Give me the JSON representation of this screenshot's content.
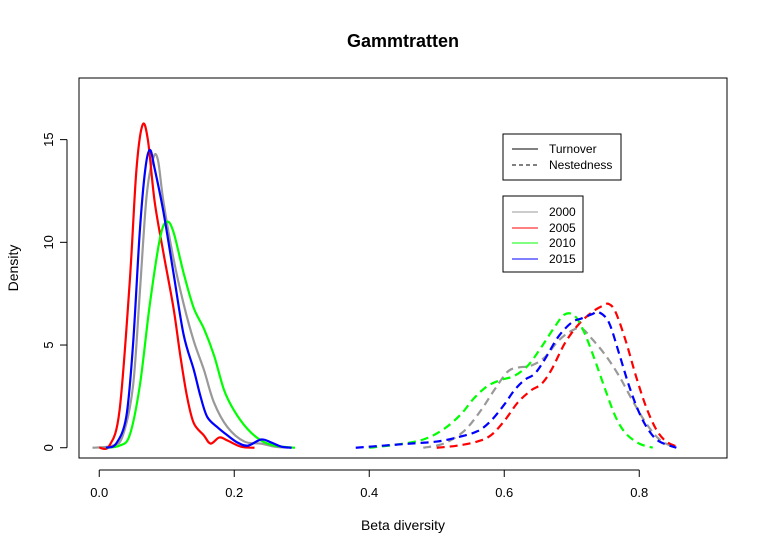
{
  "chart_data": {
    "type": "line",
    "title": "Gammtratten",
    "xlabel": "Beta diversity",
    "ylabel": "Density",
    "xlim": [
      -0.03,
      0.93
    ],
    "ylim": [
      -0.5,
      18
    ],
    "xticks": [
      0.0,
      0.2,
      0.4,
      0.6,
      0.8
    ],
    "xtick_labels": [
      "0.0",
      "0.2",
      "0.4",
      "0.6",
      "0.8"
    ],
    "yticks": [
      0,
      5,
      10,
      15
    ],
    "ytick_labels": [
      "0",
      "5",
      "10",
      "15"
    ],
    "grid": false,
    "legend_linetype": {
      "placement": "top-right",
      "entries": [
        {
          "label": "Turnover",
          "dash": "solid"
        },
        {
          "label": "Nestedness",
          "dash": "dashed"
        }
      ]
    },
    "legend_years": {
      "placement": "right",
      "entries": [
        {
          "label": "2000",
          "color": "#999999"
        },
        {
          "label": "2005",
          "color": "#ff0000"
        },
        {
          "label": "2010",
          "color": "#00ff00"
        },
        {
          "label": "2015",
          "color": "#0000ff"
        }
      ]
    },
    "series": [
      {
        "year": "2000",
        "component": "Turnover",
        "color": "#999999",
        "dash": "solid",
        "points": [
          [
            -0.01,
            0
          ],
          [
            0.02,
            0.1
          ],
          [
            0.035,
            0.6
          ],
          [
            0.05,
            3.0
          ],
          [
            0.06,
            7.5
          ],
          [
            0.07,
            12.2
          ],
          [
            0.08,
            14.1
          ],
          [
            0.087,
            14.0
          ],
          [
            0.095,
            12.0
          ],
          [
            0.11,
            9.2
          ],
          [
            0.125,
            7.0
          ],
          [
            0.14,
            5.2
          ],
          [
            0.155,
            3.8
          ],
          [
            0.17,
            2.2
          ],
          [
            0.19,
            1.0
          ],
          [
            0.215,
            0.3
          ],
          [
            0.24,
            0.2
          ],
          [
            0.26,
            0.05
          ],
          [
            0.28,
            0
          ]
        ]
      },
      {
        "year": "2005",
        "component": "Turnover",
        "color": "#ff0000",
        "dash": "solid",
        "points": [
          [
            0.0,
            0
          ],
          [
            0.015,
            0.1
          ],
          [
            0.03,
            1.8
          ],
          [
            0.045,
            8.0
          ],
          [
            0.055,
            13.5
          ],
          [
            0.064,
            15.7
          ],
          [
            0.072,
            15.0
          ],
          [
            0.082,
            12.0
          ],
          [
            0.095,
            9.5
          ],
          [
            0.11,
            6.8
          ],
          [
            0.12,
            4.5
          ],
          [
            0.13,
            2.5
          ],
          [
            0.14,
            1.2
          ],
          [
            0.155,
            0.6
          ],
          [
            0.165,
            0.2
          ],
          [
            0.178,
            0.5
          ],
          [
            0.19,
            0.35
          ],
          [
            0.21,
            0.05
          ],
          [
            0.23,
            0
          ]
        ]
      },
      {
        "year": "2010",
        "component": "Turnover",
        "color": "#00ff00",
        "dash": "solid",
        "points": [
          [
            0.01,
            0
          ],
          [
            0.03,
            0.1
          ],
          [
            0.045,
            0.6
          ],
          [
            0.06,
            3.0
          ],
          [
            0.075,
            7.0
          ],
          [
            0.09,
            10.2
          ],
          [
            0.1,
            11.0
          ],
          [
            0.11,
            10.5
          ],
          [
            0.125,
            8.5
          ],
          [
            0.14,
            6.8
          ],
          [
            0.155,
            5.8
          ],
          [
            0.17,
            4.5
          ],
          [
            0.185,
            2.8
          ],
          [
            0.2,
            1.8
          ],
          [
            0.22,
            0.9
          ],
          [
            0.24,
            0.35
          ],
          [
            0.26,
            0.1
          ],
          [
            0.29,
            0
          ]
        ]
      },
      {
        "year": "2015",
        "component": "Turnover",
        "color": "#0000ff",
        "dash": "solid",
        "points": [
          [
            0.01,
            0
          ],
          [
            0.025,
            0.2
          ],
          [
            0.04,
            1.5
          ],
          [
            0.05,
            5.0
          ],
          [
            0.06,
            10.5
          ],
          [
            0.068,
            13.5
          ],
          [
            0.075,
            14.5
          ],
          [
            0.082,
            13.6
          ],
          [
            0.095,
            11.5
          ],
          [
            0.11,
            8.5
          ],
          [
            0.125,
            5.5
          ],
          [
            0.14,
            3.8
          ],
          [
            0.15,
            2.5
          ],
          [
            0.16,
            1.5
          ],
          [
            0.175,
            1.0
          ],
          [
            0.19,
            0.6
          ],
          [
            0.205,
            0.25
          ],
          [
            0.22,
            0.1
          ],
          [
            0.24,
            0.4
          ],
          [
            0.255,
            0.25
          ],
          [
            0.27,
            0.05
          ],
          [
            0.285,
            0
          ]
        ]
      },
      {
        "year": "2000",
        "component": "Nestedness",
        "color": "#999999",
        "dash": "dashed",
        "points": [
          [
            0.48,
            0
          ],
          [
            0.51,
            0.2
          ],
          [
            0.54,
            0.8
          ],
          [
            0.565,
            1.8
          ],
          [
            0.585,
            2.8
          ],
          [
            0.605,
            3.7
          ],
          [
            0.62,
            3.9
          ],
          [
            0.64,
            4.0
          ],
          [
            0.66,
            4.4
          ],
          [
            0.68,
            5.2
          ],
          [
            0.7,
            5.7
          ],
          [
            0.715,
            5.8
          ],
          [
            0.73,
            5.3
          ],
          [
            0.75,
            4.5
          ],
          [
            0.77,
            3.5
          ],
          [
            0.79,
            2.3
          ],
          [
            0.81,
            1.2
          ],
          [
            0.83,
            0.4
          ],
          [
            0.85,
            0.05
          ]
        ]
      },
      {
        "year": "2005",
        "component": "Nestedness",
        "color": "#ff0000",
        "dash": "dashed",
        "points": [
          [
            0.5,
            0
          ],
          [
            0.53,
            0.1
          ],
          [
            0.56,
            0.3
          ],
          [
            0.58,
            0.6
          ],
          [
            0.6,
            1.3
          ],
          [
            0.62,
            2.2
          ],
          [
            0.64,
            2.8
          ],
          [
            0.655,
            3.1
          ],
          [
            0.67,
            3.8
          ],
          [
            0.69,
            5.1
          ],
          [
            0.71,
            6.0
          ],
          [
            0.73,
            6.6
          ],
          [
            0.745,
            6.9
          ],
          [
            0.755,
            7.0
          ],
          [
            0.765,
            6.6
          ],
          [
            0.78,
            5.2
          ],
          [
            0.795,
            3.5
          ],
          [
            0.81,
            2.0
          ],
          [
            0.825,
            0.9
          ],
          [
            0.84,
            0.3
          ],
          [
            0.86,
            0
          ]
        ]
      },
      {
        "year": "2010",
        "component": "Nestedness",
        "color": "#00ff00",
        "dash": "dashed",
        "points": [
          [
            0.4,
            0
          ],
          [
            0.44,
            0.15
          ],
          [
            0.48,
            0.4
          ],
          [
            0.51,
            0.9
          ],
          [
            0.535,
            1.6
          ],
          [
            0.555,
            2.4
          ],
          [
            0.575,
            3.0
          ],
          [
            0.595,
            3.3
          ],
          [
            0.615,
            3.5
          ],
          [
            0.635,
            4.0
          ],
          [
            0.655,
            4.9
          ],
          [
            0.675,
            5.9
          ],
          [
            0.69,
            6.5
          ],
          [
            0.705,
            6.4
          ],
          [
            0.72,
            5.5
          ],
          [
            0.735,
            4.2
          ],
          [
            0.75,
            2.8
          ],
          [
            0.765,
            1.5
          ],
          [
            0.78,
            0.7
          ],
          [
            0.8,
            0.2
          ],
          [
            0.82,
            0
          ]
        ]
      },
      {
        "year": "2015",
        "component": "Nestedness",
        "color": "#0000ff",
        "dash": "dashed",
        "points": [
          [
            0.38,
            0
          ],
          [
            0.42,
            0.1
          ],
          [
            0.46,
            0.2
          ],
          [
            0.5,
            0.3
          ],
          [
            0.53,
            0.5
          ],
          [
            0.56,
            0.8
          ],
          [
            0.58,
            1.3
          ],
          [
            0.6,
            2.1
          ],
          [
            0.615,
            2.8
          ],
          [
            0.63,
            3.3
          ],
          [
            0.645,
            3.6
          ],
          [
            0.66,
            4.3
          ],
          [
            0.68,
            5.4
          ],
          [
            0.7,
            6.1
          ],
          [
            0.715,
            6.3
          ],
          [
            0.73,
            6.5
          ],
          [
            0.74,
            6.6
          ],
          [
            0.755,
            6.1
          ],
          [
            0.77,
            4.6
          ],
          [
            0.785,
            3.0
          ],
          [
            0.8,
            1.7
          ],
          [
            0.815,
            0.8
          ],
          [
            0.83,
            0.3
          ],
          [
            0.855,
            0
          ]
        ]
      }
    ]
  }
}
